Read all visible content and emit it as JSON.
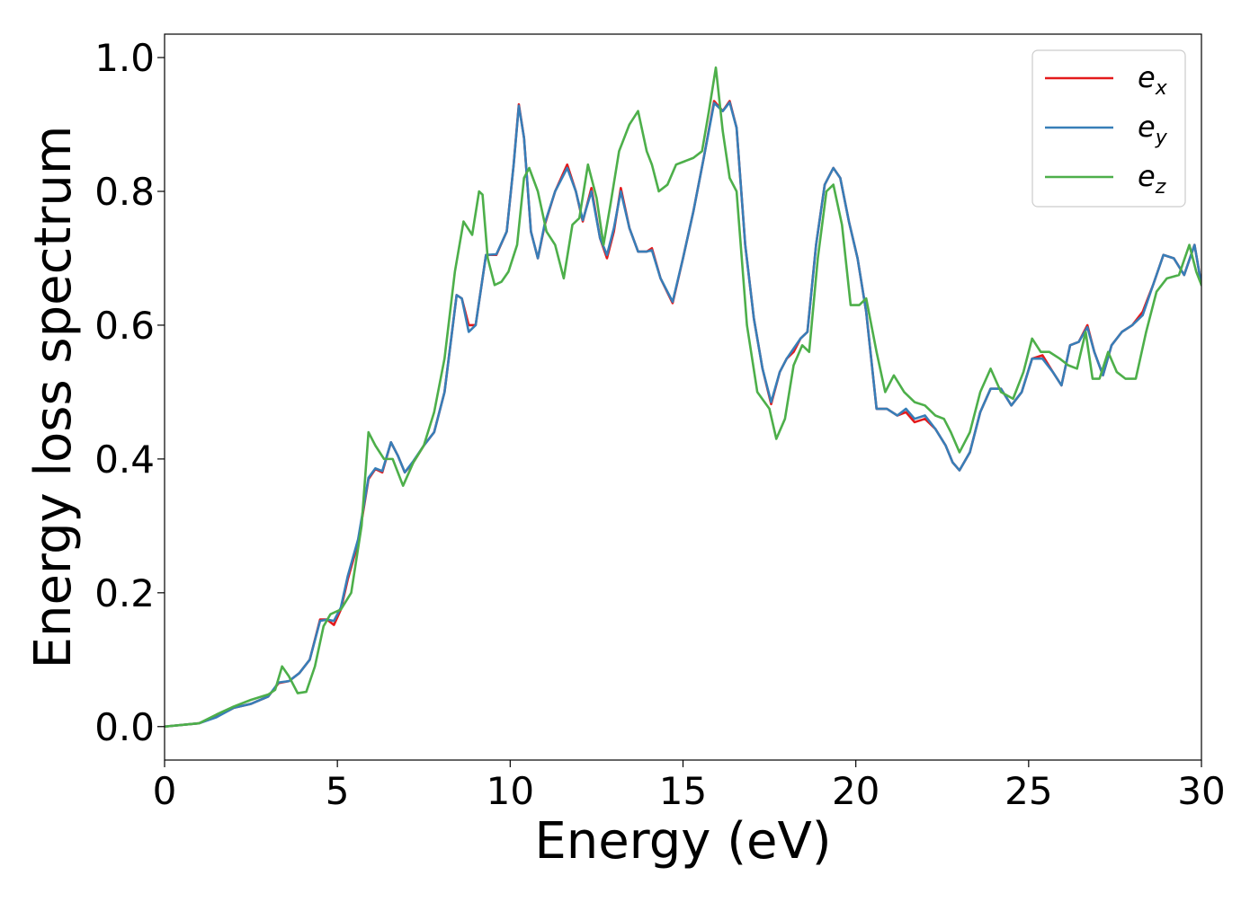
{
  "chart_data": {
    "type": "line",
    "xlabel": "Energy (eV)",
    "ylabel": "Energy loss spectrum",
    "xlim": [
      0,
      30
    ],
    "ylim": [
      -0.05,
      1.035
    ],
    "xticks": [
      0,
      5,
      10,
      15,
      20,
      25,
      30
    ],
    "xtick_labels": [
      "0",
      "5",
      "10",
      "15",
      "20",
      "25",
      "30"
    ],
    "yticks": [
      0.0,
      0.2,
      0.4,
      0.6,
      0.8,
      1.0
    ],
    "ytick_labels": [
      "0.0",
      "0.2",
      "0.4",
      "0.6",
      "0.8",
      "1.0"
    ],
    "grid": false,
    "legend_position": "top-right",
    "series": [
      {
        "name": "e_x",
        "legend_base": "e",
        "legend_sub": "x",
        "color": "#e41a1c",
        "x": [
          0,
          1.0,
          1.5,
          2.0,
          2.5,
          3.0,
          3.3,
          3.6,
          3.9,
          4.2,
          4.5,
          4.7,
          4.9,
          5.1,
          5.3,
          5.6,
          5.9,
          6.1,
          6.3,
          6.55,
          6.75,
          6.95,
          7.2,
          7.5,
          7.8,
          8.1,
          8.45,
          8.6,
          8.8,
          9.0,
          9.3,
          9.6,
          9.9,
          10.1,
          10.25,
          10.4,
          10.6,
          10.8,
          11.0,
          11.3,
          11.65,
          11.9,
          12.1,
          12.35,
          12.6,
          12.8,
          13.0,
          13.2,
          13.45,
          13.7,
          13.95,
          14.1,
          14.35,
          14.7,
          15.0,
          15.3,
          15.6,
          15.9,
          16.15,
          16.35,
          16.55,
          16.8,
          17.05,
          17.3,
          17.55,
          17.8,
          18.0,
          18.2,
          18.4,
          18.6,
          18.85,
          19.1,
          19.35,
          19.55,
          19.8,
          20.05,
          20.3,
          20.6,
          20.9,
          21.2,
          21.45,
          21.7,
          22.0,
          22.3,
          22.6,
          22.8,
          23.0,
          23.3,
          23.6,
          23.9,
          24.2,
          24.5,
          24.8,
          25.1,
          25.4,
          25.7,
          25.95,
          26.2,
          26.45,
          26.7,
          26.9,
          27.15,
          27.4,
          27.7,
          28.0,
          28.3,
          28.6,
          28.9,
          29.2,
          29.5,
          29.8,
          30.0
        ],
        "y": [
          0,
          0.005,
          0.015,
          0.028,
          0.034,
          0.045,
          0.065,
          0.068,
          0.08,
          0.1,
          0.16,
          0.16,
          0.152,
          0.175,
          0.22,
          0.275,
          0.37,
          0.385,
          0.38,
          0.425,
          0.405,
          0.38,
          0.395,
          0.42,
          0.44,
          0.5,
          0.645,
          0.64,
          0.6,
          0.6,
          0.705,
          0.705,
          0.74,
          0.84,
          0.93,
          0.88,
          0.74,
          0.7,
          0.75,
          0.8,
          0.84,
          0.8,
          0.755,
          0.805,
          0.73,
          0.7,
          0.74,
          0.805,
          0.745,
          0.71,
          0.71,
          0.715,
          0.67,
          0.633,
          0.7,
          0.77,
          0.85,
          0.935,
          0.92,
          0.935,
          0.895,
          0.72,
          0.61,
          0.535,
          0.482,
          0.53,
          0.55,
          0.56,
          0.58,
          0.59,
          0.72,
          0.81,
          0.835,
          0.82,
          0.755,
          0.7,
          0.62,
          0.475,
          0.475,
          0.465,
          0.47,
          0.455,
          0.46,
          0.445,
          0.42,
          0.395,
          0.383,
          0.41,
          0.47,
          0.505,
          0.505,
          0.48,
          0.5,
          0.55,
          0.555,
          0.53,
          0.51,
          0.57,
          0.575,
          0.6,
          0.56,
          0.525,
          0.57,
          0.59,
          0.6,
          0.62,
          0.66,
          0.705,
          0.7,
          0.675,
          0.72,
          0.66
        ]
      },
      {
        "name": "e_y",
        "legend_base": "e",
        "legend_sub": "y",
        "color": "#377eb8",
        "x": [
          0,
          1.0,
          1.5,
          2.0,
          2.5,
          3.0,
          3.3,
          3.6,
          3.9,
          4.2,
          4.5,
          4.7,
          4.9,
          5.1,
          5.3,
          5.6,
          5.9,
          6.1,
          6.3,
          6.55,
          6.75,
          6.95,
          7.2,
          7.5,
          7.8,
          8.1,
          8.45,
          8.6,
          8.8,
          9.0,
          9.3,
          9.6,
          9.9,
          10.1,
          10.25,
          10.4,
          10.6,
          10.8,
          11.0,
          11.3,
          11.65,
          11.9,
          12.1,
          12.35,
          12.6,
          12.8,
          13.0,
          13.2,
          13.45,
          13.7,
          13.95,
          14.1,
          14.35,
          14.7,
          15.0,
          15.3,
          15.6,
          15.9,
          16.15,
          16.35,
          16.55,
          16.8,
          17.05,
          17.3,
          17.55,
          17.8,
          18.0,
          18.2,
          18.4,
          18.6,
          18.85,
          19.1,
          19.35,
          19.55,
          19.8,
          20.05,
          20.3,
          20.6,
          20.9,
          21.2,
          21.45,
          21.7,
          22.0,
          22.3,
          22.6,
          22.8,
          23.0,
          23.3,
          23.6,
          23.9,
          24.2,
          24.5,
          24.8,
          25.1,
          25.4,
          25.7,
          25.95,
          26.2,
          26.45,
          26.7,
          26.9,
          27.15,
          27.4,
          27.7,
          28.0,
          28.3,
          28.6,
          28.9,
          29.2,
          29.5,
          29.8,
          30.0
        ],
        "y": [
          0,
          0.005,
          0.014,
          0.028,
          0.034,
          0.045,
          0.066,
          0.068,
          0.08,
          0.1,
          0.158,
          0.16,
          0.158,
          0.178,
          0.225,
          0.28,
          0.372,
          0.386,
          0.382,
          0.425,
          0.405,
          0.38,
          0.397,
          0.42,
          0.44,
          0.5,
          0.645,
          0.64,
          0.59,
          0.6,
          0.705,
          0.706,
          0.74,
          0.84,
          0.928,
          0.88,
          0.74,
          0.7,
          0.752,
          0.8,
          0.835,
          0.8,
          0.757,
          0.8,
          0.73,
          0.705,
          0.745,
          0.8,
          0.745,
          0.71,
          0.71,
          0.712,
          0.67,
          0.635,
          0.7,
          0.77,
          0.85,
          0.932,
          0.92,
          0.933,
          0.895,
          0.72,
          0.61,
          0.535,
          0.485,
          0.53,
          0.55,
          0.565,
          0.58,
          0.59,
          0.72,
          0.81,
          0.835,
          0.82,
          0.755,
          0.7,
          0.62,
          0.475,
          0.475,
          0.465,
          0.475,
          0.46,
          0.465,
          0.445,
          0.42,
          0.395,
          0.383,
          0.41,
          0.47,
          0.505,
          0.505,
          0.48,
          0.5,
          0.55,
          0.55,
          0.53,
          0.51,
          0.57,
          0.575,
          0.597,
          0.56,
          0.525,
          0.57,
          0.59,
          0.6,
          0.615,
          0.66,
          0.705,
          0.7,
          0.675,
          0.72,
          0.66
        ]
      },
      {
        "name": "e_z",
        "legend_base": "e",
        "legend_sub": "z",
        "color": "#4daf4a",
        "x": [
          0,
          1.0,
          1.5,
          2.0,
          2.5,
          3.0,
          3.2,
          3.4,
          3.6,
          3.85,
          4.1,
          4.35,
          4.6,
          4.8,
          5.1,
          5.4,
          5.7,
          5.9,
          6.1,
          6.35,
          6.6,
          6.9,
          7.2,
          7.5,
          7.8,
          8.1,
          8.4,
          8.65,
          8.9,
          9.1,
          9.2,
          9.35,
          9.55,
          9.75,
          9.95,
          10.2,
          10.4,
          10.55,
          10.8,
          11.05,
          11.3,
          11.55,
          11.8,
          12.0,
          12.25,
          12.5,
          12.7,
          12.9,
          13.15,
          13.45,
          13.7,
          13.95,
          14.1,
          14.3,
          14.55,
          14.8,
          15.05,
          15.3,
          15.55,
          15.75,
          15.95,
          16.15,
          16.35,
          16.55,
          16.85,
          17.15,
          17.5,
          17.7,
          17.95,
          18.2,
          18.45,
          18.65,
          18.9,
          19.15,
          19.35,
          19.6,
          19.85,
          20.1,
          20.3,
          20.6,
          20.85,
          21.1,
          21.4,
          21.7,
          22.0,
          22.3,
          22.55,
          22.75,
          23.0,
          23.3,
          23.6,
          23.9,
          24.2,
          24.55,
          24.85,
          25.1,
          25.35,
          25.6,
          25.9,
          26.15,
          26.4,
          26.65,
          26.85,
          27.05,
          27.3,
          27.55,
          27.8,
          28.1,
          28.4,
          28.7,
          29.0,
          29.35,
          29.65,
          29.85,
          30.0
        ],
        "y": [
          0,
          0.005,
          0.018,
          0.03,
          0.04,
          0.048,
          0.055,
          0.09,
          0.075,
          0.05,
          0.052,
          0.09,
          0.15,
          0.168,
          0.175,
          0.2,
          0.3,
          0.44,
          0.42,
          0.4,
          0.4,
          0.36,
          0.395,
          0.42,
          0.47,
          0.55,
          0.68,
          0.755,
          0.735,
          0.8,
          0.795,
          0.7,
          0.66,
          0.665,
          0.68,
          0.72,
          0.82,
          0.835,
          0.8,
          0.74,
          0.72,
          0.67,
          0.75,
          0.76,
          0.84,
          0.79,
          0.72,
          0.78,
          0.86,
          0.9,
          0.92,
          0.86,
          0.84,
          0.8,
          0.81,
          0.84,
          0.845,
          0.85,
          0.86,
          0.92,
          0.985,
          0.89,
          0.82,
          0.8,
          0.6,
          0.5,
          0.475,
          0.43,
          0.46,
          0.54,
          0.57,
          0.56,
          0.7,
          0.8,
          0.81,
          0.75,
          0.63,
          0.63,
          0.64,
          0.56,
          0.5,
          0.525,
          0.5,
          0.485,
          0.48,
          0.465,
          0.46,
          0.44,
          0.41,
          0.44,
          0.5,
          0.535,
          0.5,
          0.49,
          0.53,
          0.58,
          0.56,
          0.56,
          0.55,
          0.54,
          0.535,
          0.59,
          0.52,
          0.52,
          0.56,
          0.53,
          0.52,
          0.52,
          0.59,
          0.65,
          0.67,
          0.675,
          0.72,
          0.68,
          0.66
        ]
      }
    ]
  }
}
